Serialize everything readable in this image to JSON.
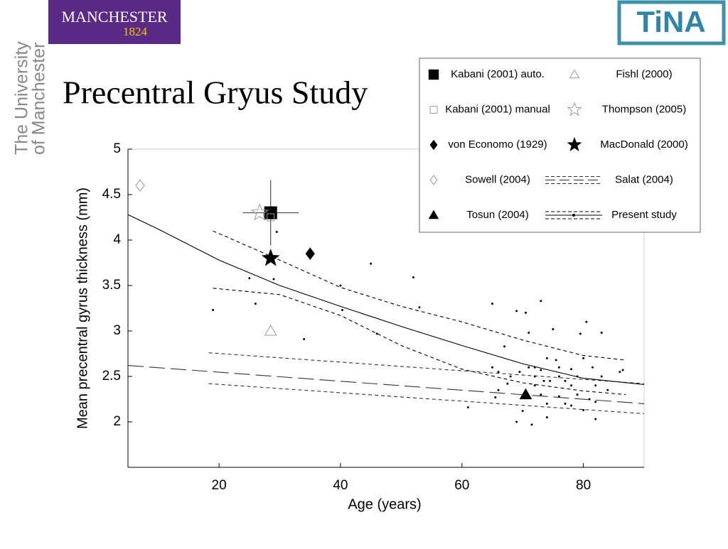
{
  "header": {
    "logo_text": "MANCHESTER",
    "logo_year": "1824",
    "university_line1": "The University",
    "university_line2": "of Manchester",
    "tina_logo": "TiNA",
    "title": "Precentral Gryus Study"
  },
  "chart_data": {
    "type": "scatter",
    "xlabel": "Age (years)",
    "ylabel": "Mean precentral gyrus thickness (mm)",
    "xlim": [
      5,
      90
    ],
    "ylim": [
      1.5,
      5
    ],
    "xticks": [
      20,
      40,
      60,
      80
    ],
    "yticks": [
      2,
      2.5,
      3,
      3.5,
      4,
      4.5,
      5
    ],
    "series": [
      {
        "name": "Kabani (2001) auto.",
        "color": "#000000",
        "marker": "square",
        "x": [
          28.5
        ],
        "values": [
          4.3
        ],
        "x_error": [
          4.6
        ],
        "y_error": [
          0.36
        ]
      },
      {
        "name": "Kabani (2001) manual",
        "color": "#999999",
        "marker": "square-open",
        "x": [
          28.5
        ],
        "values": [
          4.25
        ]
      },
      {
        "name": "von Economo (1929)",
        "color": "#000000",
        "marker": "diamond",
        "x": [
          35
        ],
        "values": [
          3.85
        ]
      },
      {
        "name": "Sowell (2004)",
        "color": "#999999",
        "marker": "diamond-open",
        "x": [
          7
        ],
        "values": [
          4.6
        ]
      },
      {
        "name": "Tosun (2004)",
        "color": "#000000",
        "marker": "triangle",
        "x": [
          70.5
        ],
        "values": [
          2.3
        ]
      },
      {
        "name": "Fishl (2000)",
        "color": "#999999",
        "marker": "triangle-open",
        "x": [
          28.5
        ],
        "values": [
          3.0
        ]
      },
      {
        "name": "Thompson (2005)",
        "color": "#999999",
        "marker": "star-open",
        "x": [
          26.7
        ],
        "values": [
          4.3
        ]
      },
      {
        "name": "MacDonald (2000)",
        "color": "#000000",
        "marker": "star",
        "x": [
          28.5
        ],
        "values": [
          3.8
        ]
      },
      {
        "name": "Salat (2004)",
        "color": "#333333",
        "marker": "line-long",
        "fit": {
          "x": [
            5,
            90
          ],
          "values": [
            2.62,
            2.2
          ]
        },
        "upper": {
          "x": [
            18.3,
            90
          ],
          "values": [
            2.76,
            2.42
          ]
        },
        "lower": {
          "x": [
            18.3,
            90
          ],
          "values": [
            2.42,
            2.09
          ]
        }
      },
      {
        "name": "Present study",
        "color": "#000000",
        "marker": "dot",
        "x": [
          19,
          25,
          26,
          29,
          29.5,
          34,
          40,
          40.3,
          45,
          46,
          52,
          53,
          61,
          65,
          65,
          66,
          66,
          67.5,
          67,
          69,
          70.5,
          71,
          71,
          72,
          72,
          72,
          73,
          73,
          73.5,
          74,
          74,
          75,
          75.5,
          76,
          76,
          77,
          77,
          78,
          78,
          79,
          79.5,
          80,
          80.5,
          81,
          81.5,
          82,
          83,
          84,
          86,
          86.5,
          69,
          70,
          71.5,
          74,
          80,
          82,
          65.5,
          68,
          69.5,
          73,
          74.5,
          76,
          78,
          79,
          82,
          83
        ],
        "values": [
          3.23,
          3.58,
          3.3,
          3.57,
          4.09,
          2.91,
          3.5,
          3.23,
          3.74,
          2.97,
          3.59,
          3.26,
          2.16,
          3.3,
          2.6,
          2.55,
          2.35,
          2.42,
          2.83,
          3.22,
          3.2,
          2.98,
          2.6,
          2.6,
          2.5,
          2.4,
          2.57,
          3.33,
          2.45,
          2.7,
          2.2,
          3.02,
          2.68,
          2.5,
          2.6,
          2.45,
          2.2,
          2.58,
          2.4,
          2.3,
          2.97,
          2.7,
          3.1,
          2.25,
          2.6,
          2.4,
          2.98,
          2.35,
          2.55,
          2.57,
          2.0,
          2.12,
          1.97,
          2.05,
          2.13,
          2.03,
          2.27,
          2.5,
          2.55,
          2.3,
          2.45,
          2.28,
          2.18,
          2.5,
          2.22,
          2.5
        ],
        "fit": {
          "x": [
            5,
            10,
            20,
            30,
            40,
            50,
            60,
            70,
            80,
            90
          ],
          "values": [
            4.28,
            4.12,
            3.78,
            3.5,
            3.27,
            3.05,
            2.84,
            2.64,
            2.48,
            2.41
          ]
        },
        "upper": {
          "x": [
            19,
            30,
            40,
            50,
            60,
            70,
            80,
            87
          ],
          "values": [
            4.1,
            3.78,
            3.48,
            3.27,
            3.1,
            2.9,
            2.73,
            2.68
          ]
        },
        "lower": {
          "x": [
            19,
            30,
            40,
            50,
            60,
            70,
            80,
            87
          ],
          "values": [
            3.47,
            3.4,
            3.17,
            2.84,
            2.58,
            2.43,
            2.34,
            2.3
          ]
        }
      }
    ]
  }
}
